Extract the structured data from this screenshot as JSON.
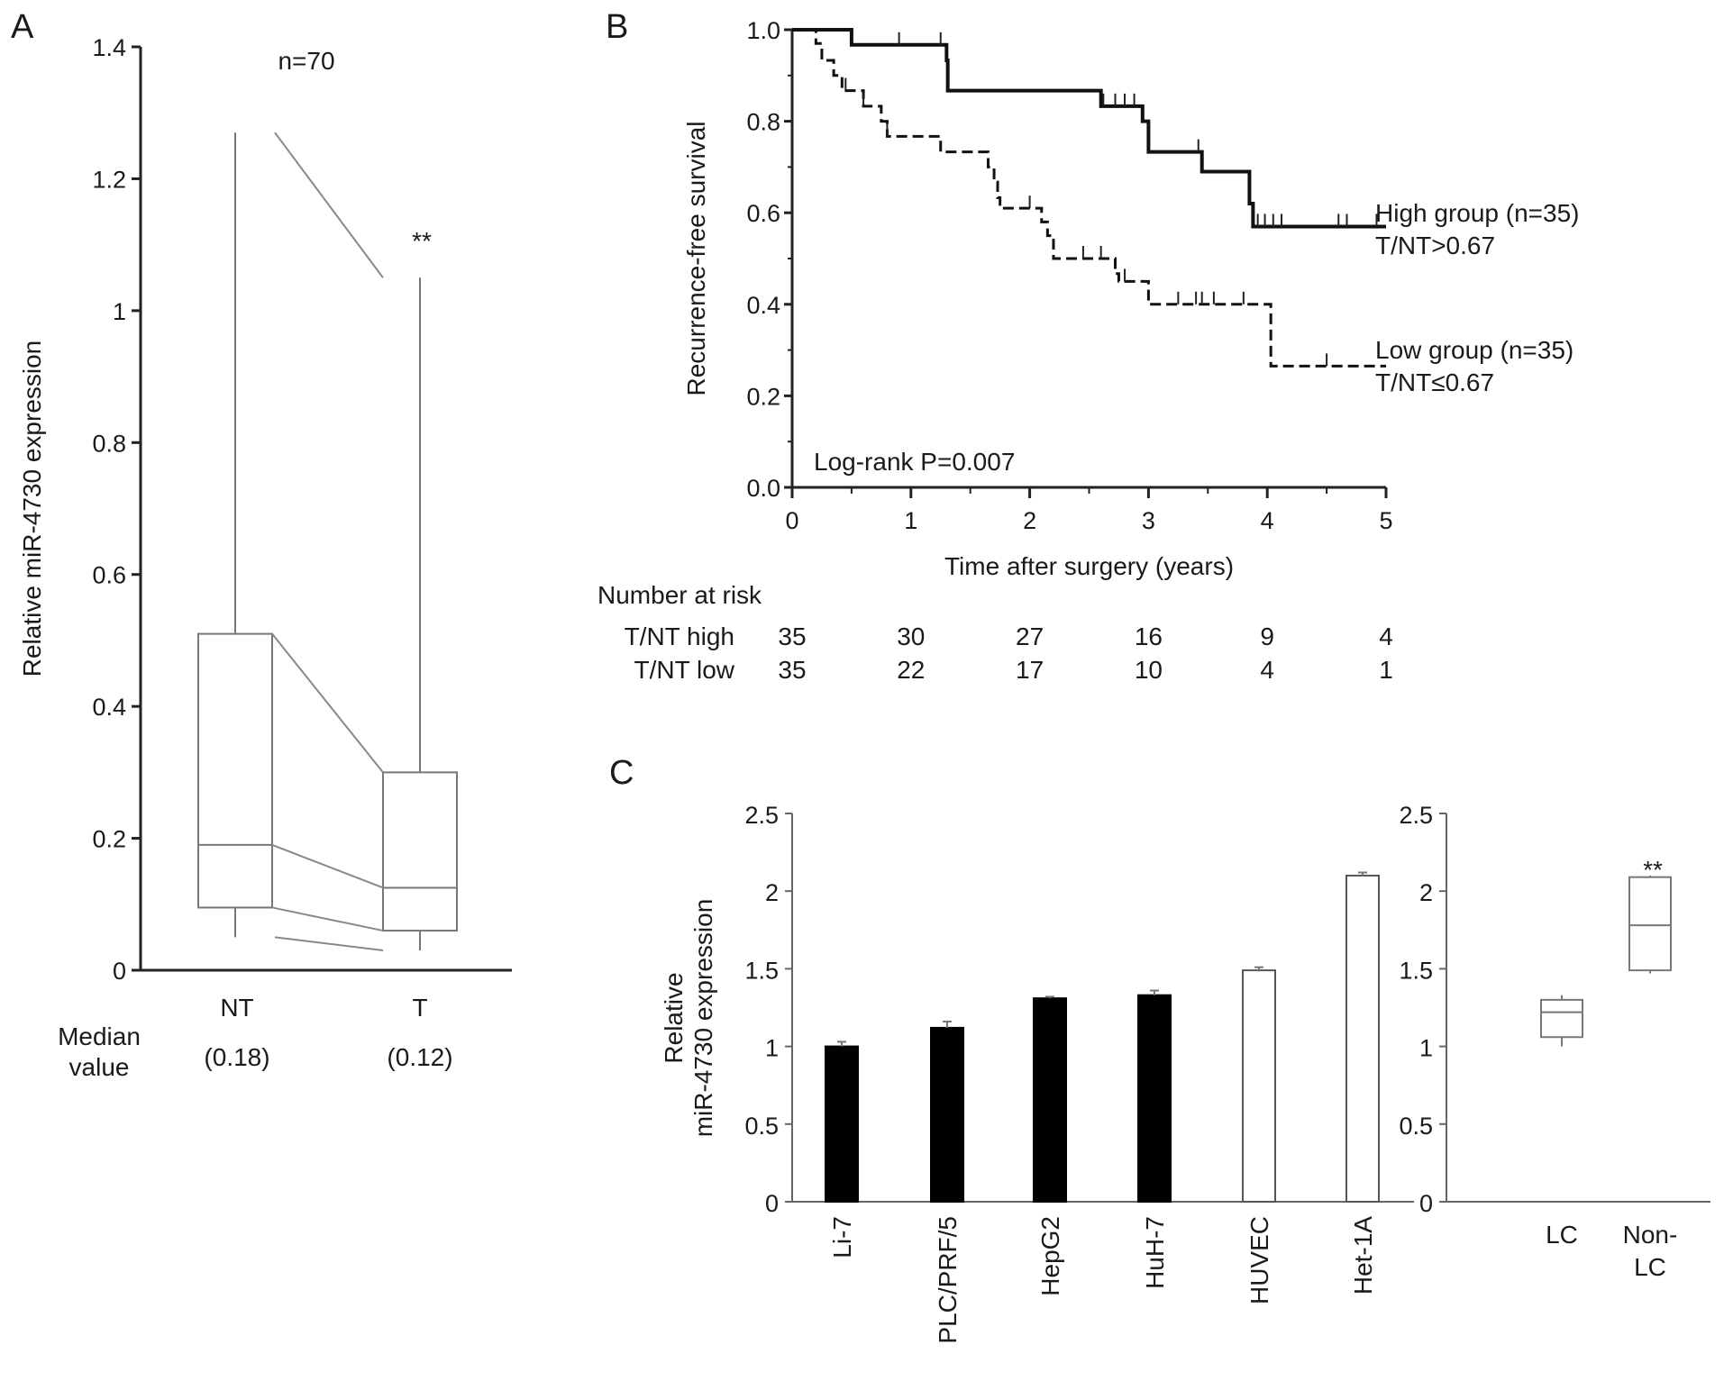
{
  "chart_data": [
    {
      "panel": "A",
      "type": "box",
      "title": "n=70",
      "ylabel": "Relative miR-4730 expression",
      "ylim": [
        0,
        1.4
      ],
      "yticks": [
        "0",
        "0.2",
        "0.4",
        "0.6",
        "0.8",
        "1",
        "1.2",
        "1.4"
      ],
      "ytick_values": [
        0,
        0.2,
        0.4,
        0.6,
        0.8,
        1,
        1.2,
        1.4
      ],
      "categories": [
        "NT",
        "T"
      ],
      "median_label": [
        "Median",
        "value"
      ],
      "median_values": [
        "(0.18)",
        "(0.12)"
      ],
      "significance": "**",
      "boxes": [
        {
          "name": "NT",
          "whisker_low": 0.05,
          "q1": 0.095,
          "median": 0.19,
          "q3": 0.51,
          "whisker_high": 1.27
        },
        {
          "name": "T",
          "whisker_low": 0.03,
          "q1": 0.06,
          "median": 0.125,
          "q3": 0.3,
          "whisker_high": 1.05
        }
      ]
    },
    {
      "panel": "B",
      "type": "line",
      "subtype": "kaplan-meier",
      "xlabel": "Time after surgery (years)",
      "ylabel": "Recurrence-free survival",
      "xlim": [
        0,
        5
      ],
      "ylim": [
        0,
        1
      ],
      "xticks": [
        "0",
        "1",
        "2",
        "3",
        "4",
        "5"
      ],
      "yticks": [
        "0.0",
        "0.2",
        "0.4",
        "0.6",
        "0.8",
        "1.0"
      ],
      "annotation": "Log-rank P=0.007",
      "series": [
        {
          "name": "High group (n=35)",
          "sublabel": "T/NT>0.67",
          "style": "solid",
          "steps": [
            [
              0,
              1.0
            ],
            [
              0.5,
              0.967
            ],
            [
              1.3,
              0.933
            ],
            [
              1.31,
              0.867
            ],
            [
              2.6,
              0.833
            ],
            [
              2.95,
              0.8
            ],
            [
              3.0,
              0.733
            ],
            [
              3.45,
              0.69
            ],
            [
              3.85,
              0.62
            ],
            [
              3.88,
              0.57
            ],
            [
              5,
              0.57
            ]
          ],
          "censored": [
            0.9,
            1.25,
            2.62,
            2.72,
            2.8,
            2.88,
            3.42,
            3.92,
            3.98,
            4.05,
            4.12,
            4.6,
            4.67,
            4.92
          ]
        },
        {
          "name": "Low group (n=35)",
          "sublabel": "T/NT≤0.67",
          "style": "dashed",
          "steps": [
            [
              0,
              1.0
            ],
            [
              0.2,
              0.97
            ],
            [
              0.25,
              0.933
            ],
            [
              0.35,
              0.9
            ],
            [
              0.42,
              0.867
            ],
            [
              0.6,
              0.833
            ],
            [
              0.75,
              0.8
            ],
            [
              0.8,
              0.767
            ],
            [
              1.25,
              0.733
            ],
            [
              1.65,
              0.7
            ],
            [
              1.7,
              0.667
            ],
            [
              1.73,
              0.633
            ],
            [
              1.75,
              0.61
            ],
            [
              2.1,
              0.58
            ],
            [
              2.15,
              0.55
            ],
            [
              2.2,
              0.5
            ],
            [
              2.72,
              0.467
            ],
            [
              2.75,
              0.45
            ],
            [
              3.0,
              0.4
            ],
            [
              4.03,
              0.265
            ],
            [
              5,
              0.265
            ]
          ],
          "censored": [
            0.45,
            0.6,
            0.8,
            2.0,
            2.45,
            2.6,
            2.8,
            3.25,
            3.4,
            3.45,
            3.55,
            3.8,
            4.5
          ]
        }
      ],
      "risk_table": {
        "title": "Number at risk",
        "times": [
          0,
          1,
          2,
          3,
          4,
          5
        ],
        "rows": [
          {
            "label": "T/NT high",
            "values": [
              "35",
              "30",
              "27",
              "16",
              "9",
              "4"
            ]
          },
          {
            "label": "T/NT low",
            "values": [
              "35",
              "22",
              "17",
              "10",
              "4",
              "1"
            ]
          }
        ]
      }
    },
    {
      "panel": "C",
      "type": "bar",
      "ylabel": [
        "Relative",
        "miR-4730 expression"
      ],
      "ylim": [
        0,
        2.5
      ],
      "yticks": [
        "0",
        "0.5",
        "1",
        "1.5",
        "2",
        "2.5"
      ],
      "categories": [
        "Li-7",
        "PLC/PRF/5",
        "HepG2",
        "HuH-7",
        "HUVEC",
        "Het-1A"
      ],
      "values": [
        1.0,
        1.12,
        1.31,
        1.33,
        1.49,
        2.1
      ],
      "errors": [
        0.03,
        0.04,
        0.01,
        0.03,
        0.02,
        0.02
      ],
      "fill": [
        "#000000",
        "#000000",
        "#000000",
        "#000000",
        "#ffffff",
        "#ffffff"
      ]
    },
    {
      "panel": "C-right",
      "type": "box",
      "ylim": [
        0,
        2.5
      ],
      "yticks": [
        "0",
        "0.5",
        "1",
        "1.5",
        "2",
        "2.5"
      ],
      "categories": [
        [
          "LC"
        ],
        [
          "Non-",
          "LC"
        ]
      ],
      "significance": "**",
      "boxes": [
        {
          "name": "LC",
          "whisker_low": 1.0,
          "q1": 1.06,
          "median": 1.22,
          "q3": 1.3,
          "whisker_high": 1.33
        },
        {
          "name": "Non-LC",
          "whisker_low": 1.47,
          "q1": 1.49,
          "median": 1.78,
          "q3": 2.09,
          "whisker_high": 2.1
        }
      ]
    }
  ],
  "panels": {
    "a": "A",
    "b": "B",
    "c": "C"
  }
}
